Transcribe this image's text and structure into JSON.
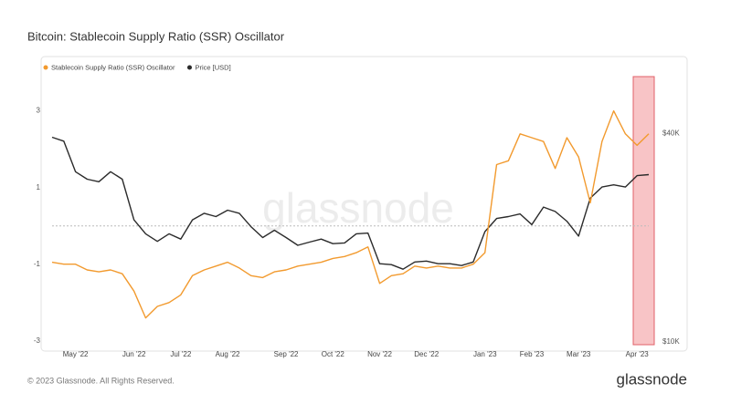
{
  "chart_data": {
    "type": "line",
    "title": "Bitcoin: Stablecoin Supply Ratio (SSR) Oscillator",
    "watermark": "glassnode",
    "footer": "© 2023 Glassnode. All Rights Reserved.",
    "logo": "glassnode",
    "legend": "top-left",
    "categories": [
      null,
      null,
      "May '22",
      null,
      null,
      null,
      null,
      "Jun '22",
      null,
      null,
      null,
      "Jul '22",
      null,
      null,
      null,
      "Aug '22",
      null,
      null,
      null,
      null,
      "Sep '22",
      null,
      null,
      null,
      "Oct '22",
      null,
      null,
      null,
      "Nov '22",
      null,
      null,
      null,
      "Dec '22",
      null,
      null,
      null,
      null,
      "Jan '23",
      null,
      null,
      null,
      "Feb '23",
      null,
      null,
      null,
      "Mar '23",
      null,
      null,
      null,
      null,
      "Apr '23",
      null
    ],
    "ylim": [
      -3.1,
      3.8
    ],
    "yticks": [
      -3,
      -1,
      1,
      3
    ],
    "y2lim": [
      9800,
      57000
    ],
    "y2scale": "log",
    "y2ticks": [
      {
        "value": 10000,
        "label": "$10K"
      },
      {
        "value": 40000,
        "label": "$40K"
      }
    ],
    "series": [
      {
        "name": "Stablecoin Supply Ratio (SSR) Oscillator",
        "color": "#f29a2e",
        "axis": "y",
        "values": [
          -0.95,
          -1.0,
          -1.0,
          -1.15,
          -1.2,
          -1.15,
          -1.25,
          -1.7,
          -2.4,
          -2.1,
          -2.0,
          -1.8,
          -1.3,
          -1.15,
          -1.05,
          -0.95,
          -1.1,
          -1.3,
          -1.35,
          -1.2,
          -1.15,
          -1.05,
          -1.0,
          -0.95,
          -0.85,
          -0.8,
          -0.7,
          -0.55,
          -1.5,
          -1.3,
          -1.25,
          -1.05,
          -1.1,
          -1.05,
          -1.1,
          -1.1,
          -1.0,
          -0.7,
          1.6,
          1.7,
          2.4,
          2.3,
          2.2,
          1.5,
          2.3,
          1.8,
          0.6,
          2.2,
          3.0,
          2.4,
          2.1,
          2.4
        ]
      },
      {
        "name": "Price [USD]",
        "color": "#2b2b2b",
        "axis": "y2",
        "values": [
          39000,
          38000,
          31000,
          29500,
          29000,
          31000,
          29500,
          22500,
          20500,
          19500,
          20500,
          19800,
          22500,
          23500,
          23000,
          24000,
          23500,
          21500,
          20000,
          21000,
          20000,
          19000,
          19400,
          19800,
          19200,
          19300,
          20500,
          20600,
          16800,
          16700,
          16200,
          17000,
          17100,
          16800,
          16800,
          16600,
          17000,
          20800,
          22700,
          23000,
          23400,
          21800,
          24500,
          23800,
          22300,
          20200,
          26000,
          28000,
          28400,
          28000,
          30200,
          30400
        ]
      }
    ]
  }
}
